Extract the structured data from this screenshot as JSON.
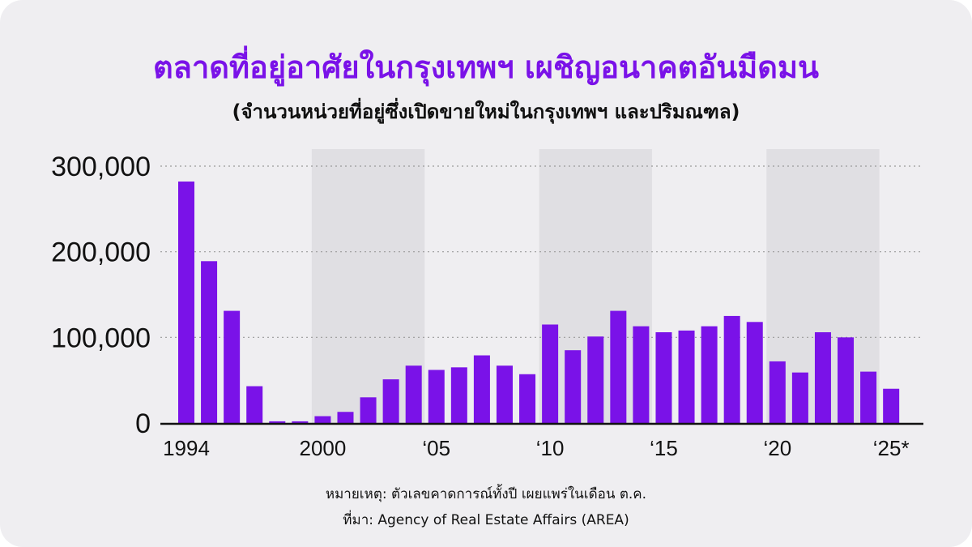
{
  "title": "ตลาดที่อยู่อาศัยในกรุงเทพฯ เผชิญอนาคตอันมืดมน",
  "subtitle": "(จำนวนหน่วยที่อยู่ซึ่งเปิดขายใหม่ในกรุงเทพฯ และปริมณฑล)",
  "note": "หมายเหตุ: ตัวเลขคาดการณ์ทั้งปี เผยแพร่ในเดือน ต.ค.",
  "source": "ที่มา: Agency of Real Estate Affairs (AREA)",
  "colors": {
    "background": "#efeef1",
    "bar": "#7a12e8",
    "title": "#7a12e8",
    "shade": "#e0dfe3",
    "axis": "#111111",
    "grid": "#9a9a9a"
  },
  "chart_data": {
    "type": "bar",
    "categories": [
      "1994",
      "1995",
      "1996",
      "1997",
      "1998",
      "1999",
      "2000",
      "2001",
      "2002",
      "2003",
      "2004",
      "2005",
      "2006",
      "2007",
      "2008",
      "2009",
      "2010",
      "2011",
      "2012",
      "2013",
      "2014",
      "2015",
      "2016",
      "2017",
      "2018",
      "2019",
      "2020",
      "2021",
      "2022",
      "2023",
      "2024",
      "2025"
    ],
    "values": [
      282000,
      189000,
      131000,
      43000,
      2000,
      2000,
      8000,
      13000,
      30000,
      51000,
      67000,
      62000,
      65000,
      79000,
      67000,
      57000,
      115000,
      85000,
      101000,
      131000,
      113000,
      106000,
      108000,
      113000,
      125000,
      118000,
      72000,
      59000,
      106000,
      100000,
      60000,
      40000
    ],
    "ylim": [
      0,
      300000
    ],
    "yticks": [
      0,
      100000,
      200000,
      300000
    ],
    "ytick_labels": [
      "0",
      "100,000",
      "200,000",
      "300,000"
    ],
    "xtick_labels": [
      {
        "category": "1994",
        "label": "1994"
      },
      {
        "category": "2000",
        "label": "2000"
      },
      {
        "category": "2005",
        "label": "‘05"
      },
      {
        "category": "2010",
        "label": "‘10"
      },
      {
        "category": "2015",
        "label": "‘15"
      },
      {
        "category": "2020",
        "label": "‘20"
      },
      {
        "category": "2025",
        "label": "‘25*"
      }
    ],
    "shaded_ranges": [
      [
        "2000",
        "2004"
      ],
      [
        "2010",
        "2014"
      ],
      [
        "2020",
        "2024"
      ]
    ],
    "grid": "horizontal dotted",
    "legend": "none"
  }
}
